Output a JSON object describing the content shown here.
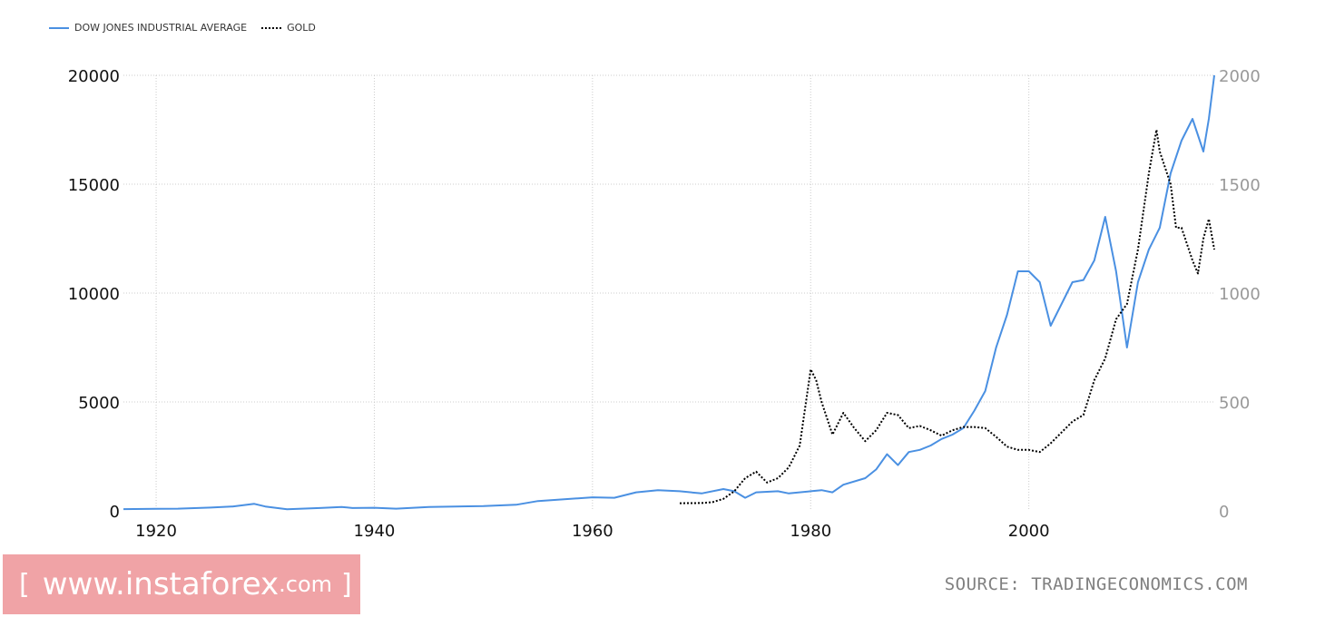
{
  "legend": {
    "dow_label": "DOW JONES INDUSTRIAL AVERAGE",
    "gold_label": "GOLD"
  },
  "watermark": {
    "open_bracket": "[",
    "text": "www.instaforex",
    "suffix": ".com",
    "close_bracket": "]"
  },
  "source": "SOURCE: TRADINGECONOMICS.COM",
  "colors": {
    "dow": "#4a90e2",
    "gold": "#000000",
    "grid": "#cccccc",
    "watermark_bg": "#f0a3a6"
  },
  "chart_data": {
    "type": "line",
    "x_axis": {
      "min": 1917,
      "max": 2017,
      "ticks": [
        1920,
        1940,
        1960,
        1980,
        2000
      ]
    },
    "y_left": {
      "min": 0,
      "max": 20000,
      "ticks": [
        0,
        5000,
        10000,
        15000,
        20000
      ]
    },
    "y_right": {
      "min": 0,
      "max": 2000,
      "ticks": [
        0,
        500,
        1000,
        1500,
        2000
      ]
    },
    "grid": true,
    "legend_position": "top-left",
    "series": [
      {
        "name": "DOW JONES INDUSTRIAL AVERAGE",
        "axis": "left",
        "style": "solid",
        "points": [
          [
            1917,
            80
          ],
          [
            1920,
            90
          ],
          [
            1922,
            100
          ],
          [
            1925,
            150
          ],
          [
            1927,
            200
          ],
          [
            1929,
            320
          ],
          [
            1930,
            200
          ],
          [
            1932,
            70
          ],
          [
            1935,
            130
          ],
          [
            1937,
            180
          ],
          [
            1938,
            130
          ],
          [
            1940,
            140
          ],
          [
            1942,
            100
          ],
          [
            1945,
            180
          ],
          [
            1950,
            220
          ],
          [
            1953,
            280
          ],
          [
            1955,
            450
          ],
          [
            1958,
            550
          ],
          [
            1960,
            620
          ],
          [
            1962,
            600
          ],
          [
            1964,
            850
          ],
          [
            1966,
            950
          ],
          [
            1968,
            900
          ],
          [
            1970,
            800
          ],
          [
            1972,
            1000
          ],
          [
            1973,
            900
          ],
          [
            1974,
            600
          ],
          [
            1975,
            850
          ],
          [
            1977,
            900
          ],
          [
            1978,
            800
          ],
          [
            1980,
            900
          ],
          [
            1981,
            950
          ],
          [
            1982,
            850
          ],
          [
            1983,
            1200
          ],
          [
            1985,
            1500
          ],
          [
            1986,
            1900
          ],
          [
            1987,
            2600
          ],
          [
            1988,
            2100
          ],
          [
            1989,
            2700
          ],
          [
            1990,
            2800
          ],
          [
            1991,
            3000
          ],
          [
            1992,
            3300
          ],
          [
            1993,
            3500
          ],
          [
            1994,
            3800
          ],
          [
            1995,
            4600
          ],
          [
            1996,
            5500
          ],
          [
            1997,
            7500
          ],
          [
            1998,
            9000
          ],
          [
            1999,
            11000
          ],
          [
            2000,
            11000
          ],
          [
            2001,
            10500
          ],
          [
            2002,
            8500
          ],
          [
            2003,
            9500
          ],
          [
            2004,
            10500
          ],
          [
            2005,
            10600
          ],
          [
            2006,
            11500
          ],
          [
            2007,
            13500
          ],
          [
            2008,
            11000
          ],
          [
            2009,
            7500
          ],
          [
            2010,
            10500
          ],
          [
            2011,
            12000
          ],
          [
            2012,
            13000
          ],
          [
            2013,
            15500
          ],
          [
            2014,
            17000
          ],
          [
            2015,
            18000
          ],
          [
            2016,
            16500
          ],
          [
            2016.5,
            18000
          ],
          [
            2017,
            20000
          ]
        ]
      },
      {
        "name": "GOLD",
        "axis": "right",
        "style": "dotted",
        "points": [
          [
            1968,
            35
          ],
          [
            1970,
            36
          ],
          [
            1971,
            40
          ],
          [
            1972,
            55
          ],
          [
            1973,
            90
          ],
          [
            1974,
            150
          ],
          [
            1975,
            180
          ],
          [
            1976,
            130
          ],
          [
            1977,
            150
          ],
          [
            1978,
            200
          ],
          [
            1979,
            300
          ],
          [
            1980,
            650
          ],
          [
            1980.5,
            600
          ],
          [
            1981,
            500
          ],
          [
            1982,
            350
          ],
          [
            1983,
            450
          ],
          [
            1984,
            380
          ],
          [
            1985,
            320
          ],
          [
            1986,
            370
          ],
          [
            1987,
            450
          ],
          [
            1988,
            440
          ],
          [
            1989,
            380
          ],
          [
            1990,
            390
          ],
          [
            1991,
            370
          ],
          [
            1992,
            345
          ],
          [
            1993,
            370
          ],
          [
            1994,
            385
          ],
          [
            1995,
            385
          ],
          [
            1996,
            380
          ],
          [
            1997,
            340
          ],
          [
            1998,
            295
          ],
          [
            1999,
            280
          ],
          [
            2000,
            280
          ],
          [
            2001,
            270
          ],
          [
            2002,
            310
          ],
          [
            2003,
            360
          ],
          [
            2004,
            410
          ],
          [
            2005,
            440
          ],
          [
            2006,
            600
          ],
          [
            2007,
            700
          ],
          [
            2008,
            880
          ],
          [
            2009,
            950
          ],
          [
            2010,
            1200
          ],
          [
            2011,
            1550
          ],
          [
            2011.7,
            1750
          ],
          [
            2012,
            1650
          ],
          [
            2013,
            1500
          ],
          [
            2013.5,
            1300
          ],
          [
            2014,
            1300
          ],
          [
            2015,
            1150
          ],
          [
            2015.5,
            1090
          ],
          [
            2016,
            1250
          ],
          [
            2016.5,
            1340
          ],
          [
            2017,
            1200
          ]
        ]
      }
    ]
  }
}
